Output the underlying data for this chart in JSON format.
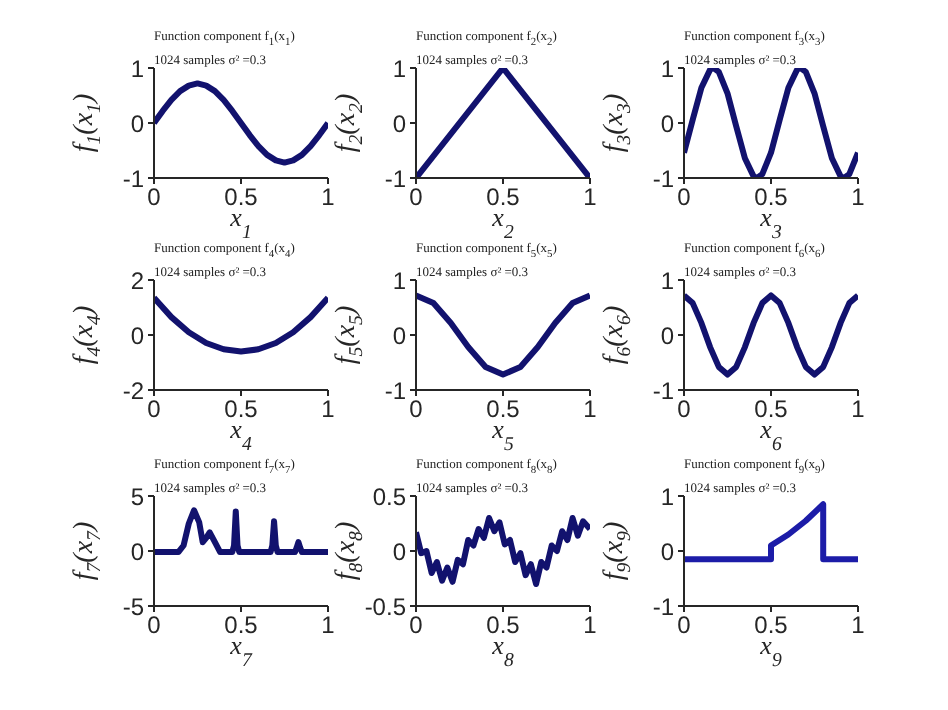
{
  "chart_data": [
    {
      "type": "line",
      "title": "Function component f$_{1}$(x$_{1}$)",
      "subtitle": "1024 samples σ² =0.3",
      "xlabel": "x$_{1}$",
      "ylabel": "f$_{1}$(x$_{1}$)",
      "xlim": [
        0,
        1
      ],
      "ylim": [
        -1,
        1
      ],
      "xticks": [
        0,
        0.5,
        1
      ],
      "yticks": [
        -1,
        0,
        1
      ],
      "x": [
        0,
        0.05,
        0.1,
        0.15,
        0.2,
        0.25,
        0.3,
        0.35,
        0.4,
        0.45,
        0.5,
        0.55,
        0.6,
        0.65,
        0.7,
        0.75,
        0.8,
        0.85,
        0.9,
        0.95,
        1
      ],
      "series": [
        {
          "color": "#12126e",
          "values": [
            0,
            0.22,
            0.42,
            0.58,
            0.68,
            0.72,
            0.68,
            0.58,
            0.42,
            0.22,
            0,
            -0.22,
            -0.42,
            -0.58,
            -0.68,
            -0.72,
            -0.68,
            -0.58,
            -0.42,
            -0.22,
            0
          ]
        }
      ]
    },
    {
      "type": "line",
      "title": "Function component f$_{2}$(x$_{2}$)",
      "subtitle": "1024 samples σ² =0.3",
      "xlabel": "x$_{2}$",
      "ylabel": "f$_{2}$(x$_{2}$)",
      "xlim": [
        0,
        1
      ],
      "ylim": [
        -1,
        1
      ],
      "xticks": [
        0,
        0.5,
        1
      ],
      "yticks": [
        -1,
        0,
        1
      ],
      "x": [
        0,
        0.5,
        1
      ],
      "series": [
        {
          "color": "#12126e",
          "values": [
            -1,
            1,
            -1
          ]
        }
      ]
    },
    {
      "type": "line",
      "title": "Function component f$_{3}$(x$_{3}$)",
      "subtitle": "1024 samples σ² =0.3",
      "xlabel": "x$_{3}$",
      "ylabel": "f$_{3}$(x$_{3}$)",
      "xlim": [
        0,
        1
      ],
      "ylim": [
        -1,
        1
      ],
      "xticks": [
        0,
        0.5,
        1
      ],
      "yticks": [
        -1,
        0,
        1
      ],
      "x": [
        0,
        0.05,
        0.1,
        0.15,
        0.17,
        0.2,
        0.25,
        0.3,
        0.35,
        0.4,
        0.42,
        0.45,
        0.5,
        0.55,
        0.6,
        0.65,
        0.67,
        0.7,
        0.75,
        0.8,
        0.85,
        0.9,
        0.92,
        0.95,
        1
      ],
      "series": [
        {
          "color": "#12126e",
          "values": [
            -0.54,
            0.06,
            0.64,
            0.97,
            1,
            0.93,
            0.54,
            -0.06,
            -0.64,
            -0.97,
            -1,
            -0.93,
            -0.54,
            0.06,
            0.64,
            0.97,
            1,
            0.93,
            0.54,
            -0.06,
            -0.64,
            -0.97,
            -1,
            -0.93,
            -0.54
          ]
        }
      ]
    },
    {
      "type": "line",
      "title": "Function component f$_{4}$(x$_{4}$)",
      "subtitle": "1024 samples σ² =0.3",
      "xlabel": "x$_{4}$",
      "ylabel": "f$_{4}$(x$_{4}$)",
      "xlim": [
        0,
        1
      ],
      "ylim": [
        -2,
        2
      ],
      "xticks": [
        0,
        0.5,
        1
      ],
      "yticks": [
        -2,
        0,
        2
      ],
      "x": [
        0,
        0.1,
        0.2,
        0.3,
        0.4,
        0.5,
        0.6,
        0.7,
        0.8,
        0.9,
        1
      ],
      "series": [
        {
          "color": "#12126e",
          "values": [
            1.35,
            0.65,
            0.1,
            -0.29,
            -0.52,
            -0.6,
            -0.52,
            -0.29,
            0.1,
            0.65,
            1.35
          ]
        }
      ]
    },
    {
      "type": "line",
      "title": "Function component f$_{5}$(x$_{5}$)",
      "subtitle": "1024 samples σ² =0.3",
      "xlabel": "x$_{5}$",
      "ylabel": "f$_{5}$(x$_{5}$)",
      "xlim": [
        0,
        1
      ],
      "ylim": [
        -1,
        1
      ],
      "xticks": [
        0,
        0.5,
        1
      ],
      "yticks": [
        -1,
        0,
        1
      ],
      "x": [
        0,
        0.1,
        0.2,
        0.3,
        0.4,
        0.5,
        0.6,
        0.7,
        0.8,
        0.9,
        1
      ],
      "series": [
        {
          "color": "#12126e",
          "values": [
            0.72,
            0.58,
            0.22,
            -0.22,
            -0.58,
            -0.72,
            -0.58,
            -0.22,
            0.22,
            0.58,
            0.72
          ]
        }
      ]
    },
    {
      "type": "line",
      "title": "Function component f$_{6}$(x$_{6}$)",
      "subtitle": "1024 samples σ² =0.3",
      "xlabel": "x$_{6}$",
      "ylabel": "f$_{6}$(x$_{6}$)",
      "xlim": [
        0,
        1
      ],
      "ylim": [
        -1,
        1
      ],
      "xticks": [
        0,
        0.5,
        1
      ],
      "yticks": [
        -1,
        0,
        1
      ],
      "x": [
        0,
        0.05,
        0.1,
        0.15,
        0.2,
        0.25,
        0.3,
        0.35,
        0.4,
        0.45,
        0.5,
        0.55,
        0.6,
        0.65,
        0.7,
        0.75,
        0.8,
        0.85,
        0.9,
        0.95,
        1
      ],
      "series": [
        {
          "color": "#12126e",
          "values": [
            0.72,
            0.58,
            0.22,
            -0.22,
            -0.58,
            -0.72,
            -0.58,
            -0.22,
            0.22,
            0.58,
            0.72,
            0.58,
            0.22,
            -0.22,
            -0.58,
            -0.72,
            -0.58,
            -0.22,
            0.22,
            0.58,
            0.72
          ]
        }
      ]
    },
    {
      "type": "line",
      "title": "Function component f$_{7}$(x$_{7}$)",
      "subtitle": "1024 samples σ² =0.3",
      "xlabel": "x$_{7}$",
      "ylabel": "f$_{7}$(x$_{7}$)",
      "xlim": [
        0,
        1
      ],
      "ylim": [
        -5,
        5
      ],
      "xticks": [
        0,
        0.5,
        1
      ],
      "yticks": [
        -5,
        0,
        5
      ],
      "x": [
        0,
        0.14,
        0.17,
        0.2,
        0.23,
        0.26,
        0.28,
        0.3,
        0.32,
        0.35,
        0.38,
        0.45,
        0.46,
        0.47,
        0.48,
        0.49,
        0.67,
        0.68,
        0.69,
        0.7,
        0.71,
        0.81,
        0.82,
        0.83,
        0.84,
        0.85,
        1
      ],
      "series": [
        {
          "color": "#12126e",
          "values": [
            -0.1,
            -0.1,
            0.5,
            2.5,
            3.7,
            2.6,
            0.8,
            1.2,
            1.7,
            0.8,
            -0.1,
            -0.1,
            0.5,
            3.6,
            0.5,
            -0.1,
            -0.1,
            0.5,
            2.7,
            0.5,
            -0.1,
            -0.1,
            0.3,
            0.8,
            0.3,
            -0.1,
            -0.1
          ]
        }
      ]
    },
    {
      "type": "line",
      "title": "Function component f$_{8}$(x$_{8}$)",
      "subtitle": "1024 samples σ² =0.3",
      "xlabel": "x$_{8}$",
      "ylabel": "f$_{8}$(x$_{8}$)",
      "xlim": [
        0,
        1
      ],
      "ylim": [
        -0.5,
        0.5
      ],
      "xticks": [
        0,
        0.5,
        1
      ],
      "yticks": [
        -0.5,
        0,
        0.5
      ],
      "x": [
        0,
        0.03,
        0.06,
        0.09,
        0.12,
        0.15,
        0.18,
        0.21,
        0.24,
        0.27,
        0.3,
        0.33,
        0.36,
        0.39,
        0.42,
        0.45,
        0.48,
        0.51,
        0.54,
        0.57,
        0.6,
        0.63,
        0.66,
        0.69,
        0.72,
        0.75,
        0.78,
        0.81,
        0.84,
        0.87,
        0.9,
        0.93,
        0.96,
        1
      ],
      "series": [
        {
          "color": "#12126e",
          "values": [
            0.17,
            -0.02,
            0,
            -0.2,
            -0.1,
            -0.27,
            -0.15,
            -0.28,
            -0.08,
            -0.12,
            0.1,
            0.05,
            0.2,
            0.12,
            0.3,
            0.18,
            0.26,
            0.06,
            0.1,
            -0.1,
            -0.02,
            -0.22,
            -0.12,
            -0.3,
            -0.1,
            -0.15,
            0.05,
            0,
            0.18,
            0.1,
            0.3,
            0.14,
            0.27,
            0.2
          ]
        }
      ]
    },
    {
      "type": "line",
      "title": "Function component f$_{9}$(x$_{9}$)",
      "subtitle": "1024 samples σ² =0.3",
      "xlabel": "x$_{9}$",
      "ylabel": "f$_{9}$(x$_{9}$)",
      "xlim": [
        0,
        1
      ],
      "ylim": [
        -1,
        1
      ],
      "xticks": [
        0,
        0.5,
        1
      ],
      "yticks": [
        -1,
        0,
        1
      ],
      "x": [
        0,
        0.5,
        0.5,
        0.6,
        0.7,
        0.8,
        0.8,
        1
      ],
      "series": [
        {
          "color": "#1c1ca8",
          "values": [
            -0.15,
            -0.15,
            0.1,
            0.3,
            0.55,
            0.85,
            -0.15,
            -0.15
          ]
        }
      ]
    }
  ]
}
